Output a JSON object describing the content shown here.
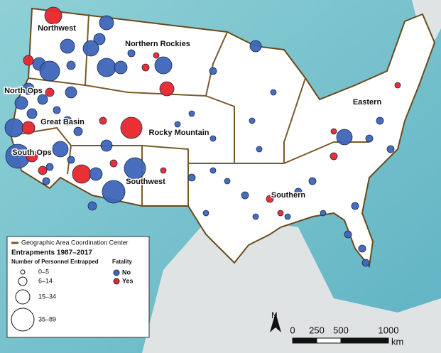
{
  "regions": [
    {
      "label": "Northwest"
    },
    {
      "label": "Northern Rockies"
    },
    {
      "label": "North Ops"
    },
    {
      "label": "Great Basin"
    },
    {
      "label": "Rocky Mountain"
    },
    {
      "label": "South Ops"
    },
    {
      "label": "Southwest"
    },
    {
      "label": "Southern"
    },
    {
      "label": "Eastern"
    }
  ],
  "legend": {
    "boundary": "Geographic Area Coordination Center",
    "title": "Entrapments 1987–2017",
    "size_heading": "Number of Personnel Entrapped",
    "color_heading": "Fatality",
    "sizes": [
      "0–5",
      "6–14",
      "15–34",
      "35–89"
    ],
    "colors": [
      "No",
      "Yes"
    ]
  },
  "scale_bar": {
    "ticks": [
      "0",
      "250",
      "500",
      "1000"
    ],
    "unit": "km"
  },
  "north_arrow": "N"
}
